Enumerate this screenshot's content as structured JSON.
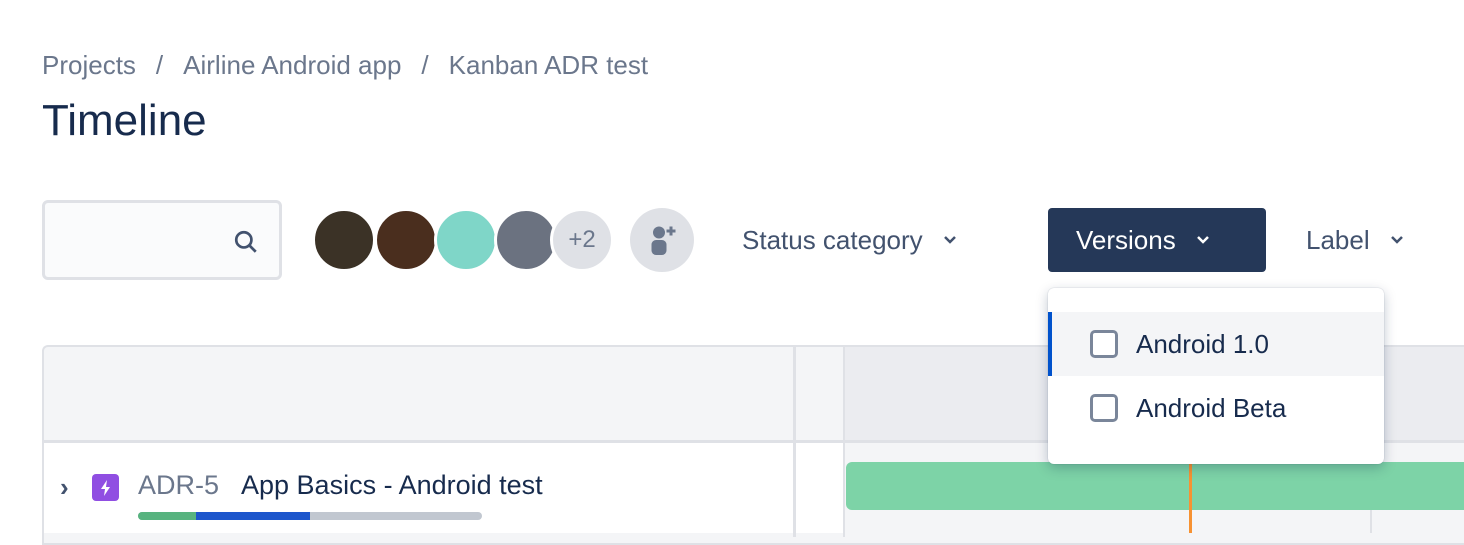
{
  "breadcrumbs": [
    "Projects",
    "Airline Android app",
    "Kanban ADR test"
  ],
  "breadcrumb_separator": "/",
  "title": "Timeline",
  "search": {
    "placeholder": "",
    "icon": "search-icon"
  },
  "avatars": {
    "colors": [
      "#3b3226",
      "#4a2e1e",
      "#7fd6c8",
      "#6b7280"
    ],
    "more_label": "+2"
  },
  "filters": {
    "status_category": "Status category",
    "versions": "Versions",
    "label": "Label"
  },
  "versions_menu": {
    "options": [
      {
        "label": "Android 1.0",
        "checked": false,
        "highlighted": true
      },
      {
        "label": "Android Beta",
        "checked": false,
        "highlighted": false
      }
    ]
  },
  "issue": {
    "key": "ADR-5",
    "summary": "App Basics - Android test",
    "type": "epic",
    "progress": {
      "done": 0.17,
      "in_progress": 0.33
    },
    "colors": {
      "done": "#57b37f",
      "in_progress": "#1d56cc",
      "bar": "#7dd3a7"
    }
  }
}
